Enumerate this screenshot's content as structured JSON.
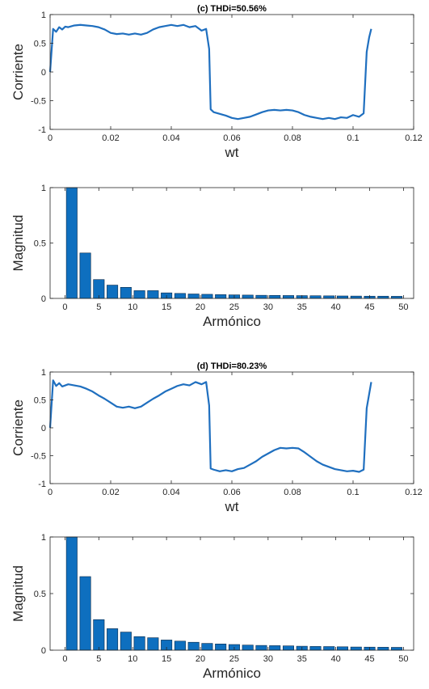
{
  "colors": {
    "line": "#1f6fbf",
    "bar": "#0e6fbf",
    "bar_edge": "#0a2a4a",
    "axis": "#262626"
  },
  "chart_data": [
    {
      "type": "line",
      "title": "(c)  THDi=50.56%",
      "xlabel": "wt",
      "ylabel": "Corriente",
      "xlim": [
        0,
        0.12
      ],
      "ylim": [
        -1,
        1
      ],
      "xticks": [
        0,
        0.02,
        0.04,
        0.06,
        0.08,
        0.1,
        0.12
      ],
      "xtick_labels": [
        "0",
        "0.02",
        "0.04",
        "0.06",
        "0.08",
        "0.1",
        "0.12"
      ],
      "yticks": [
        -1,
        -0.5,
        0,
        0.5,
        1
      ],
      "ytick_labels": [
        "-1",
        "-0.5",
        "0",
        "0.5",
        "1"
      ],
      "grid": false,
      "x": [
        0,
        0.001,
        0.002,
        0.003,
        0.004,
        0.005,
        0.006,
        0.008,
        0.01,
        0.012,
        0.014,
        0.016,
        0.018,
        0.02,
        0.022,
        0.024,
        0.026,
        0.028,
        0.03,
        0.032,
        0.034,
        0.036,
        0.038,
        0.04,
        0.042,
        0.044,
        0.046,
        0.048,
        0.05,
        0.0515,
        0.0525,
        0.053,
        0.054,
        0.056,
        0.058,
        0.06,
        0.062,
        0.064,
        0.066,
        0.068,
        0.07,
        0.072,
        0.074,
        0.076,
        0.078,
        0.08,
        0.082,
        0.084,
        0.086,
        0.088,
        0.09,
        0.092,
        0.094,
        0.096,
        0.098,
        0.1,
        0.102,
        0.1035,
        0.1045,
        0.1053,
        0.106
      ],
      "y": [
        0,
        0.75,
        0.7,
        0.78,
        0.74,
        0.79,
        0.78,
        0.81,
        0.82,
        0.81,
        0.8,
        0.78,
        0.74,
        0.68,
        0.66,
        0.67,
        0.65,
        0.67,
        0.65,
        0.68,
        0.74,
        0.78,
        0.8,
        0.82,
        0.8,
        0.82,
        0.78,
        0.8,
        0.72,
        0.75,
        0.4,
        -0.65,
        -0.7,
        -0.73,
        -0.76,
        -0.8,
        -0.82,
        -0.8,
        -0.78,
        -0.74,
        -0.7,
        -0.67,
        -0.66,
        -0.67,
        -0.66,
        -0.67,
        -0.7,
        -0.75,
        -0.78,
        -0.8,
        -0.82,
        -0.8,
        -0.82,
        -0.79,
        -0.8,
        -0.75,
        -0.78,
        -0.72,
        0.35,
        0.6,
        0.75
      ]
    },
    {
      "type": "bar",
      "xlabel": "Armónico",
      "ylabel": "Magnitud",
      "xlim": [
        -2.2,
        51.5
      ],
      "ylim": [
        0,
        1
      ],
      "xticks": [
        0,
        5,
        10,
        15,
        20,
        25,
        30,
        35,
        40,
        45,
        50
      ],
      "xtick_labels": [
        "0",
        "5",
        "10",
        "15",
        "20",
        "25",
        "30",
        "35",
        "40",
        "45",
        "50"
      ],
      "yticks": [
        0,
        0.5,
        1
      ],
      "ytick_labels": [
        "0",
        "0.5",
        "1"
      ],
      "grid": false,
      "categories": [
        1,
        3,
        5,
        7,
        9,
        11,
        13,
        15,
        17,
        19,
        21,
        23,
        25,
        27,
        29,
        31,
        33,
        35,
        37,
        39,
        41,
        43,
        45,
        47,
        49
      ],
      "values": [
        1.0,
        0.41,
        0.17,
        0.12,
        0.1,
        0.07,
        0.07,
        0.05,
        0.045,
        0.04,
        0.037,
        0.034,
        0.032,
        0.03,
        0.028,
        0.027,
        0.026,
        0.025,
        0.024,
        0.023,
        0.022,
        0.021,
        0.02,
        0.02,
        0.019
      ]
    },
    {
      "type": "line",
      "title": "(d)  THDi=80.23%",
      "xlabel": "wt",
      "ylabel": "Corriente",
      "xlim": [
        0,
        0.12
      ],
      "ylim": [
        -1,
        1
      ],
      "xticks": [
        0,
        0.02,
        0.04,
        0.06,
        0.08,
        0.1,
        0.12
      ],
      "xtick_labels": [
        "0",
        "0.02",
        "0.04",
        "0.06",
        "0.08",
        "0.1",
        "0.12"
      ],
      "yticks": [
        -1,
        -0.5,
        0,
        0.5,
        1
      ],
      "ytick_labels": [
        "-1",
        "-0.5",
        "0",
        "0.5",
        "1"
      ],
      "grid": false,
      "x": [
        0,
        0.001,
        0.002,
        0.003,
        0.004,
        0.006,
        0.008,
        0.01,
        0.012,
        0.014,
        0.016,
        0.018,
        0.02,
        0.022,
        0.024,
        0.026,
        0.028,
        0.03,
        0.032,
        0.034,
        0.036,
        0.038,
        0.04,
        0.042,
        0.044,
        0.046,
        0.048,
        0.05,
        0.0515,
        0.0525,
        0.053,
        0.054,
        0.056,
        0.058,
        0.06,
        0.062,
        0.064,
        0.066,
        0.068,
        0.07,
        0.072,
        0.074,
        0.076,
        0.078,
        0.08,
        0.082,
        0.084,
        0.086,
        0.088,
        0.09,
        0.092,
        0.094,
        0.096,
        0.098,
        0.1,
        0.102,
        0.1035,
        0.1045,
        0.1053,
        0.106
      ],
      "y": [
        0,
        0.85,
        0.75,
        0.8,
        0.74,
        0.78,
        0.76,
        0.74,
        0.7,
        0.65,
        0.58,
        0.52,
        0.45,
        0.38,
        0.36,
        0.38,
        0.35,
        0.38,
        0.45,
        0.52,
        0.58,
        0.65,
        0.7,
        0.75,
        0.78,
        0.76,
        0.82,
        0.78,
        0.82,
        0.4,
        -0.73,
        -0.75,
        -0.78,
        -0.76,
        -0.78,
        -0.74,
        -0.72,
        -0.66,
        -0.6,
        -0.52,
        -0.46,
        -0.4,
        -0.36,
        -0.37,
        -0.36,
        -0.37,
        -0.44,
        -0.52,
        -0.6,
        -0.66,
        -0.7,
        -0.74,
        -0.76,
        -0.78,
        -0.77,
        -0.79,
        -0.75,
        0.35,
        0.6,
        0.82
      ]
    },
    {
      "type": "bar",
      "xlabel": "Armónico",
      "ylabel": "Magnitud",
      "xlim": [
        -2.2,
        51.5
      ],
      "ylim": [
        0,
        1
      ],
      "xticks": [
        0,
        5,
        10,
        15,
        20,
        25,
        30,
        35,
        40,
        45,
        50
      ],
      "xtick_labels": [
        "0",
        "5",
        "10",
        "15",
        "20",
        "25",
        "30",
        "35",
        "40",
        "45",
        "50"
      ],
      "yticks": [
        0,
        0.5,
        1
      ],
      "ytick_labels": [
        "0",
        "0.5",
        "1"
      ],
      "grid": false,
      "categories": [
        1,
        3,
        5,
        7,
        9,
        11,
        13,
        15,
        17,
        19,
        21,
        23,
        25,
        27,
        29,
        31,
        33,
        35,
        37,
        39,
        41,
        43,
        45,
        47,
        49
      ],
      "values": [
        1.0,
        0.65,
        0.27,
        0.19,
        0.16,
        0.12,
        0.11,
        0.09,
        0.08,
        0.07,
        0.06,
        0.055,
        0.05,
        0.045,
        0.042,
        0.04,
        0.038,
        0.035,
        0.033,
        0.032,
        0.03,
        0.028,
        0.027,
        0.026,
        0.025
      ]
    }
  ]
}
